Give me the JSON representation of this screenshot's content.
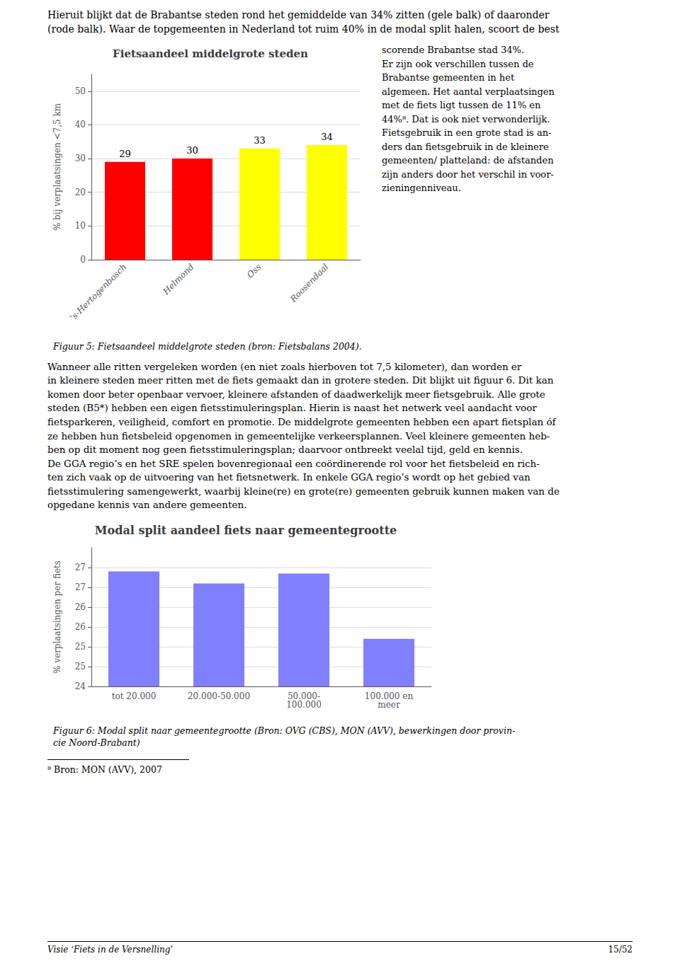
{
  "top_text": "Hieruit blijkt dat de Brabantse steden rond het gemiddelde van 34% zitten (gele balk) of daaronder\n(rode balk). Waar de topgemeenten in Nederland tot ruim 40% in de modal split halen, scoort de best",
  "right_text": "scorende Brabantse stad 34%.\nEr zijn ook verschillen tussen de\nBrabantse gemeenten in het\nalgemeen. Het aantal verplaatsingen\nmet de fiets ligt tussen de 11% en\n44%⁸. Dat is ook niet verwonderlijk.\nFietsgebruik in een grote stad is an-\nders dan fietsgebruik in de kleinere\ngemeenten/ platteland: de afstanden\nzijn anders door het verschil in voor-\nzieningenniveau.",
  "middle_text": "Wanneer alle ritten vergeleken worden (en niet zoals hierboven tot 7,5 kilometer), dan worden er\nin kleinere steden meer ritten met de fiets gemaakt dan in grotere steden. Dit blijkt uit figuur 6. Dit kan\nkomen door beter openbaar vervoer, kleinere afstanden of daadwerkelijk meer fietsgebruik. Alle grote\nsteden (B5*) hebben een eigen fietsstimuleringsplan. Hierin is naast het netwerk veel aandacht voor\nfietsparkeren, veiligheid, comfort en promotie. De middelgrote gemeenten hebben een apart fietsplan óf\nze hebben hun fietsbeleid opgenomen in gemeentelijke verkeersplannen. Veel kleinere gemeenten heb-\nben op dit moment nog geen fietsstimuleringsplan; daarvoor ontbreekt veelal tijd, geld en kennis.\nDe GGA regio’s en het SRE spelen bovenregionaal een coördinerende rol voor het fietsbeleid en rich-\nten zich vaak op de uitvoering van het fietsnetwerk. In enkele GGA regio’s wordt op het gebied van\nfietsstimulering samengewerkt, waarbij kleine(re) en grote(re) gemeenten gebruik kunnen maken van de\nopgedane kennis van andere gemeenten.",
  "footnote": "⁸ Bron: MON (AVV), 2007",
  "footer": "Visie ‘Fiets in de Versnelling’",
  "page": "15/52",
  "chart_data": [
    {
      "type": "bar",
      "title": "Fietsaandeel middelgrote steden",
      "categories": [
        "'s-Hertogenbosch",
        "Helmond",
        "Oss",
        "Roosendaal"
      ],
      "values": [
        29,
        30,
        33,
        34
      ],
      "colors": [
        "#ff0000",
        "#ff0000",
        "#ffff00",
        "#ffff00"
      ],
      "ylabel": "% bij verplaatsingen <7,5 km",
      "ylim": [
        0,
        55
      ],
      "yticks": [
        0,
        10,
        20,
        30,
        40,
        50
      ],
      "grid": true,
      "data_labels": true,
      "caption": "Figuur 5: Fietsaandeel middelgrote steden (bron: Fietsbalans 2004)."
    },
    {
      "type": "bar",
      "title": "Modal split aandeel fiets naar gemeentegrootte",
      "categories": [
        "tot 20.000",
        "20.000-50.000",
        "50.000-\n100.000",
        "100.000 en\nmeer"
      ],
      "values": [
        26.9,
        26.6,
        26.85,
        25.2
      ],
      "color": "#8080ff",
      "ylabel": "% verplaatsingen per fiets",
      "ylim": [
        24,
        27.5
      ],
      "yticks": [
        24,
        {
          "value": 24.5,
          "label": "25"
        },
        25,
        {
          "value": 25.5,
          "label": "26"
        },
        26,
        {
          "value": 26.5,
          "label": "27"
        },
        27
      ],
      "grid": true,
      "caption": "Figuur 6: Modal split naar gemeentegrootte (Bron: OVG (CBS), MON (AVV), bewerkingen door provin-\ncie Noord-Brabant)"
    }
  ]
}
